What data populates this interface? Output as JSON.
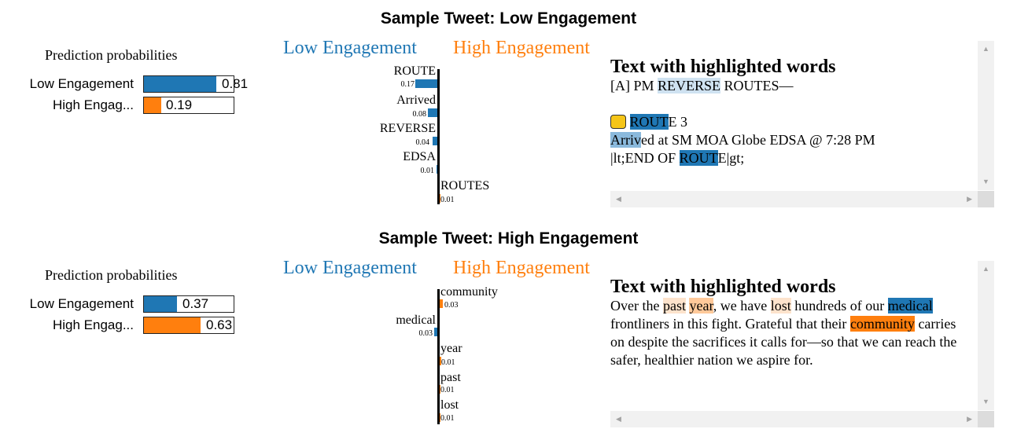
{
  "sections": [
    {
      "title": "Sample Tweet: Low Engagement",
      "probs": {
        "title": "Prediction probabilities",
        "rows": [
          {
            "label": "Low Engagement",
            "value": "0.81",
            "fraction": 0.81,
            "color": "#1f77b4"
          },
          {
            "label": "High Engag...",
            "value": "0.19",
            "fraction": 0.19,
            "color": "#ff7f0e"
          }
        ]
      },
      "legend": {
        "low": "Low Engagement",
        "high": "High Engagement"
      },
      "features": [
        {
          "word": "ROUTE",
          "value": "0.17",
          "side": "low",
          "weight": 0.17
        },
        {
          "word": "Arrived",
          "value": "0.08",
          "side": "low",
          "weight": 0.08
        },
        {
          "word": "REVERSE",
          "value": "0.04",
          "side": "low",
          "weight": 0.04
        },
        {
          "word": "EDSA",
          "value": "0.01",
          "side": "low",
          "weight": 0.01
        },
        {
          "word": "ROUTES",
          "value": "0.01",
          "side": "high",
          "weight": 0.01
        }
      ],
      "text_panel": {
        "heading": "Text with highlighted words",
        "line1_pre": "[A] PM ",
        "line1_hl": "REVERSE",
        "line1_post": " ROUTES—",
        "line3_hl1": "ROUT",
        "line3_mid": "E 3",
        "line4_hl": "Arriv",
        "line4_rest": "ed at SM MOA Globe EDSA @ 7:28 PM",
        "line5_pre": "|lt;END OF ",
        "line5_hl": "ROUT",
        "line5_post": "E|gt;",
        "emoji_icon": "bus-icon"
      }
    },
    {
      "title": "Sample Tweet: High Engagement",
      "probs": {
        "title": "Prediction probabilities",
        "rows": [
          {
            "label": "Low Engagement",
            "value": "0.37",
            "fraction": 0.37,
            "color": "#1f77b4"
          },
          {
            "label": "High Engag...",
            "value": "0.63",
            "fraction": 0.63,
            "color": "#ff7f0e"
          }
        ]
      },
      "legend": {
        "low": "Low Engagement",
        "high": "High Engagement"
      },
      "features": [
        {
          "word": "community",
          "value": "0.03",
          "side": "high",
          "weight": 0.03
        },
        {
          "word": "medical",
          "value": "0.03",
          "side": "low",
          "weight": 0.03
        },
        {
          "word": "year",
          "value": "0.01",
          "side": "high",
          "weight": 0.01
        },
        {
          "word": "past",
          "value": "0.01",
          "side": "high",
          "weight": 0.01
        },
        {
          "word": "lost",
          "value": "0.01",
          "side": "high",
          "weight": 0.01
        }
      ],
      "text_panel": {
        "heading": "Text with highlighted words",
        "t1": "Over the ",
        "past": "past",
        "t2": " ",
        "year": "year",
        "t3": ", we have ",
        "lost": "lost",
        "t4": " hundreds of our ",
        "medical": "medical",
        "t5": " frontliners in this fight. Grateful that their ",
        "community": "community",
        "t6": " carries on despite the sacrifices it calls for—so that we can reach the safer, healthier nation we aspire for."
      }
    }
  ]
}
